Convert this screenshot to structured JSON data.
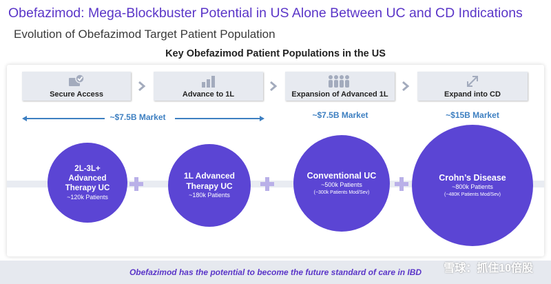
{
  "title": "Obefazimod: Mega-Blockbuster Potential in US Alone Between UC and CD Indications",
  "subtitle": "Evolution of Obefazimod Target Patient Population",
  "section_title": "Key Obefazimod Patient Populations in the US",
  "stages": [
    {
      "label": "Secure Access",
      "icon": "checkmark-card-icon"
    },
    {
      "label": "Advance to 1L",
      "icon": "bar-steps-icon"
    },
    {
      "label": "Expansion of Advanced 1L",
      "icon": "people-group-icon"
    },
    {
      "label": "Expand into CD",
      "icon": "expand-arrows-icon"
    }
  ],
  "markets": {
    "first": "~$7.5B Market",
    "second": "~$7.5B Market",
    "third": "~$15B Market"
  },
  "circles": [
    {
      "title": "2L-3L+ Advanced Therapy UC",
      "patients": "~120k Patients",
      "sub": ""
    },
    {
      "title": "1L Advanced Therapy UC",
      "patients": "~180k Patients",
      "sub": ""
    },
    {
      "title": "Conventional UC",
      "patients": "~500k Patients",
      "sub": "(~300k Patients Mod/Sev)"
    },
    {
      "title": "Crohn’s Disease",
      "patients": "~800k Patients",
      "sub": "(~480K Patients Mod/Sev)"
    }
  ],
  "footer": "Obefazimod has the potential to become the future standard of care in IBD",
  "watermark": "雪球：抓住10倍股",
  "colors": {
    "accent": "#5a35c8",
    "circle": "#5b45d4",
    "market": "#3d7fc1"
  }
}
